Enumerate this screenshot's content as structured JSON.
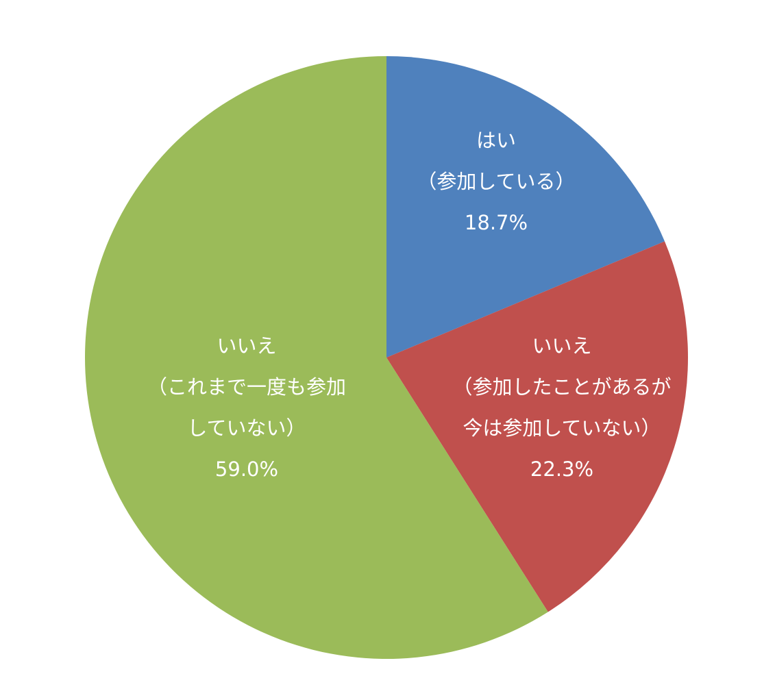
{
  "chart_data": {
    "type": "pie",
    "categories": [
      [
        "はい",
        "（参加している）"
      ],
      [
        "いいえ",
        "（参加したことがあるが",
        "今は参加していない）"
      ],
      [
        "いいえ",
        "（これまで一度も参加",
        "していない）"
      ]
    ],
    "values": [
      18.7,
      22.3,
      59.0
    ],
    "value_labels": [
      "18.7%",
      "22.3%",
      "59.0%"
    ],
    "colors": [
      "#4f81bd",
      "#c0504d",
      "#9bbb59"
    ]
  }
}
